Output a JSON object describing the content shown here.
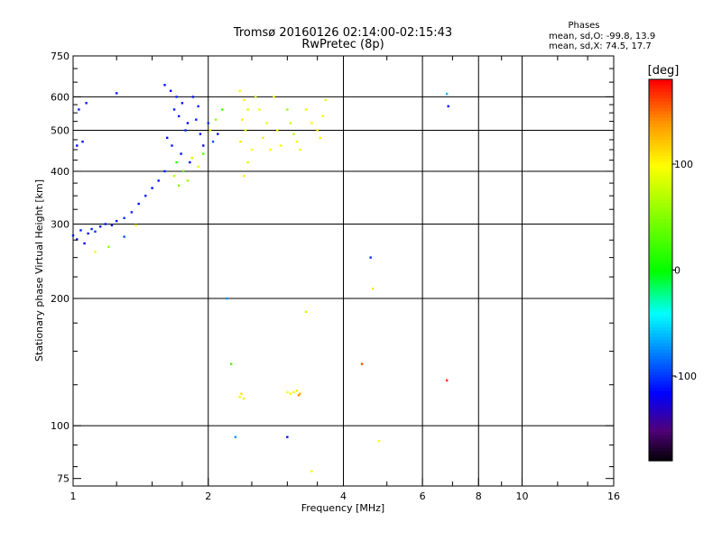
{
  "chart_data": {
    "type": "scatter",
    "title": "Tromsø 20160126 02:14:00-02:15:43",
    "subtitle": "RwPretec (8p)",
    "xlabel": "Frequency [MHz]",
    "ylabel": "Stationary phase Virtual Height [km]",
    "x_scale": "log",
    "y_scale": "log",
    "xlim": [
      1,
      16
    ],
    "ylim": [
      72,
      750
    ],
    "x_ticks": [
      1,
      2,
      4,
      6,
      8,
      10,
      16
    ],
    "x_tick_labels": [
      "1",
      "2",
      "4",
      "6",
      "8",
      "10",
      "16"
    ],
    "y_ticks": [
      75,
      100,
      200,
      300,
      400,
      500,
      600,
      750
    ],
    "y_tick_labels": [
      "75",
      "100",
      "200",
      "300",
      "400",
      "500",
      "600",
      "750"
    ],
    "x_gridlines": [
      2,
      4,
      6,
      8,
      10
    ],
    "y_gridlines": [
      100,
      200,
      300,
      400,
      500,
      600
    ],
    "grid": true,
    "stats": {
      "heading": "Phases",
      "line1": "mean, sd,O: -99.8, 13.9",
      "line2": "mean, sd,X:  74.5, 17.7"
    },
    "colorbar": {
      "label": "[deg]",
      "range": [
        -180,
        180
      ],
      "ticks": [
        100,
        0,
        -100
      ],
      "tick_labels": [
        "100",
        "0",
        "-100"
      ]
    },
    "series": [
      {
        "values": [
          [
            1.0,
            282,
            -110
          ],
          [
            1.02,
            276,
            -112
          ],
          [
            1.04,
            290,
            -108
          ],
          [
            1.06,
            270,
            -115
          ],
          [
            1.08,
            285,
            -110
          ],
          [
            1.1,
            292,
            -105
          ],
          [
            1.12,
            288,
            -100
          ],
          [
            1.15,
            296,
            -110
          ],
          [
            1.18,
            300,
            -108
          ],
          [
            1.22,
            298,
            -112
          ],
          [
            1.25,
            305,
            -110
          ],
          [
            1.3,
            310,
            -100
          ],
          [
            1.35,
            320,
            -105
          ],
          [
            1.4,
            335,
            -110
          ],
          [
            1.45,
            350,
            -108
          ],
          [
            1.5,
            365,
            -112
          ],
          [
            1.55,
            380,
            -110
          ],
          [
            1.6,
            400,
            -105
          ],
          [
            1.02,
            460,
            -112
          ],
          [
            1.05,
            470,
            -110
          ],
          [
            1.03,
            560,
            -105
          ],
          [
            1.07,
            580,
            -108
          ],
          [
            1.25,
            612,
            -110
          ],
          [
            1.12,
            258,
            95
          ],
          [
            1.2,
            265,
            60
          ],
          [
            1.3,
            280,
            -90
          ],
          [
            1.38,
            298,
            90
          ],
          [
            1.6,
            640,
            -110
          ],
          [
            1.65,
            620,
            -112
          ],
          [
            1.7,
            600,
            -105
          ],
          [
            1.75,
            580,
            -110
          ],
          [
            1.68,
            560,
            -108
          ],
          [
            1.72,
            540,
            -110
          ],
          [
            1.8,
            520,
            -112
          ],
          [
            1.78,
            500,
            -105
          ],
          [
            1.62,
            480,
            -110
          ],
          [
            1.66,
            460,
            -108
          ],
          [
            1.74,
            440,
            -110
          ],
          [
            1.82,
            420,
            -112
          ],
          [
            1.85,
            600,
            -110
          ],
          [
            1.9,
            570,
            -105
          ],
          [
            1.88,
            530,
            -108
          ],
          [
            1.92,
            490,
            -110
          ],
          [
            1.95,
            460,
            -112
          ],
          [
            1.7,
            420,
            20
          ],
          [
            1.76,
            400,
            40
          ],
          [
            1.8,
            380,
            60
          ],
          [
            1.84,
            430,
            80
          ],
          [
            1.68,
            390,
            70
          ],
          [
            1.72,
            370,
            50
          ],
          [
            1.9,
            410,
            90
          ],
          [
            1.95,
            440,
            30
          ],
          [
            2.0,
            520,
            -100
          ],
          [
            2.02,
            500,
            95
          ],
          [
            2.05,
            470,
            -90
          ],
          [
            2.08,
            530,
            60
          ],
          [
            2.1,
            490,
            -110
          ],
          [
            2.15,
            560,
            20
          ],
          [
            2.35,
            620,
            95
          ],
          [
            2.4,
            590,
            100
          ],
          [
            2.45,
            560,
            90
          ],
          [
            2.38,
            530,
            105
          ],
          [
            2.42,
            500,
            95
          ],
          [
            2.36,
            470,
            110
          ],
          [
            2.5,
            450,
            100
          ],
          [
            2.45,
            420,
            90
          ],
          [
            2.4,
            390,
            105
          ],
          [
            2.55,
            600,
            80
          ],
          [
            2.6,
            560,
            100
          ],
          [
            2.7,
            520,
            95
          ],
          [
            2.65,
            480,
            110
          ],
          [
            2.75,
            450,
            100
          ],
          [
            2.8,
            600,
            90
          ],
          [
            2.85,
            500,
            105
          ],
          [
            2.9,
            460,
            95
          ],
          [
            3.0,
            560,
            60
          ],
          [
            3.05,
            520,
            80
          ],
          [
            3.1,
            490,
            70
          ],
          [
            3.15,
            470,
            100
          ],
          [
            3.2,
            450,
            90
          ],
          [
            3.3,
            560,
            95
          ],
          [
            3.4,
            520,
            100
          ],
          [
            3.5,
            500,
            110
          ],
          [
            3.6,
            540,
            95
          ],
          [
            3.55,
            480,
            100
          ],
          [
            3.65,
            590,
            90
          ],
          [
            2.35,
            117,
            100
          ],
          [
            2.4,
            116,
            90
          ],
          [
            2.37,
            119,
            110
          ],
          [
            3.0,
            120,
            100
          ],
          [
            3.05,
            119,
            95
          ],
          [
            3.1,
            120,
            90
          ],
          [
            3.15,
            121,
            110
          ],
          [
            3.2,
            119,
            130
          ],
          [
            3.18,
            118,
            140
          ],
          [
            2.25,
            140,
            30
          ],
          [
            2.3,
            94,
            -70
          ],
          [
            3.0,
            94,
            -110
          ],
          [
            2.2,
            200,
            -70
          ],
          [
            3.3,
            186,
            90
          ],
          [
            3.4,
            78,
            95
          ],
          [
            4.4,
            140,
            160
          ],
          [
            4.6,
            250,
            -100
          ],
          [
            4.65,
            211,
            110
          ],
          [
            4.8,
            92,
            100
          ],
          [
            6.8,
            128,
            170
          ],
          [
            6.8,
            610,
            -60
          ],
          [
            6.85,
            570,
            -110
          ]
        ]
      }
    ]
  }
}
